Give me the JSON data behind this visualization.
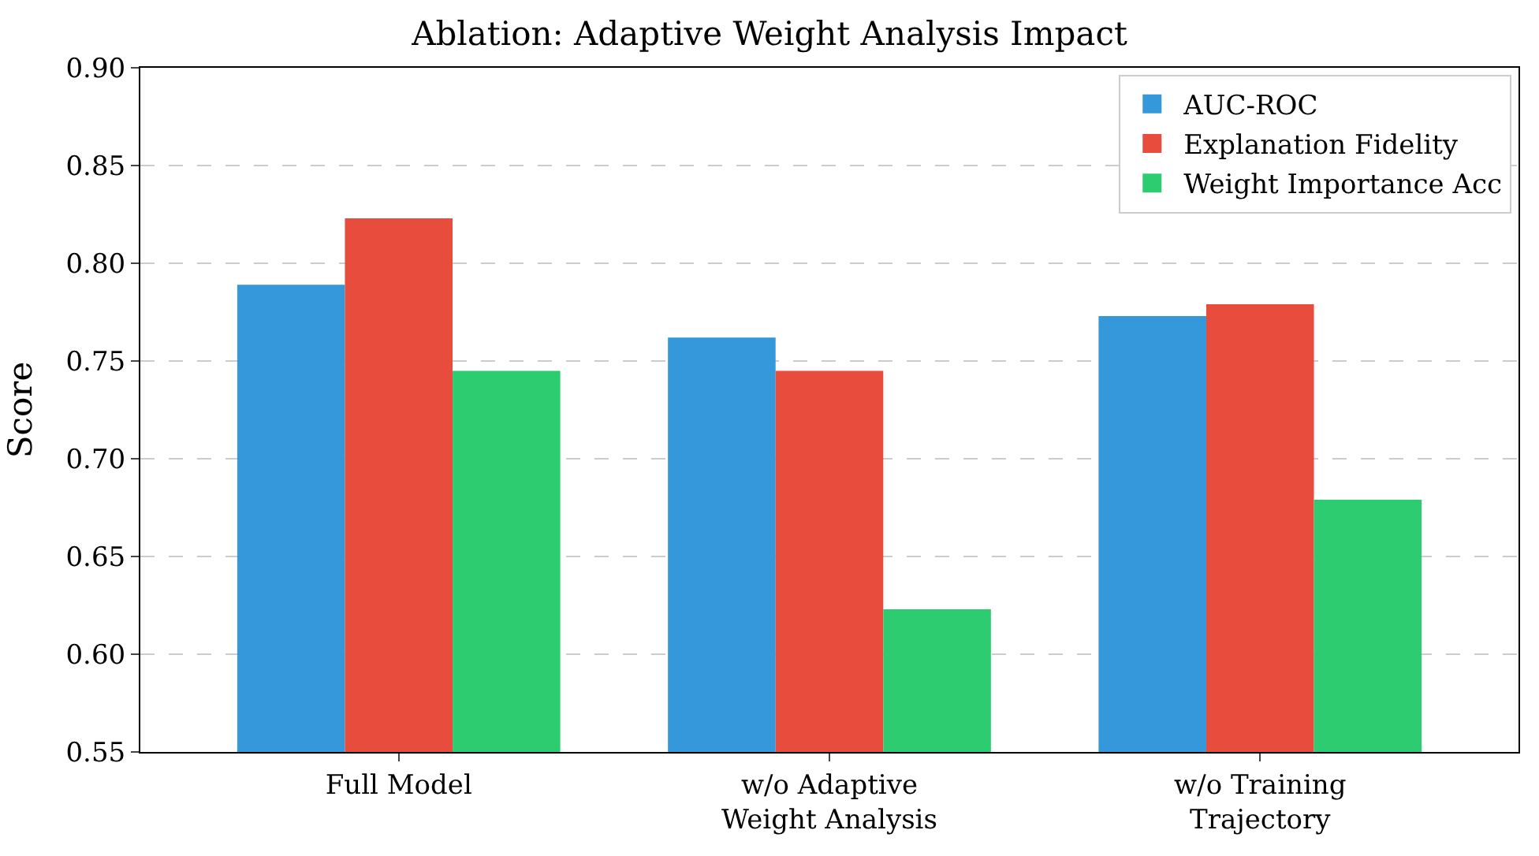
{
  "chart_data": {
    "type": "bar",
    "title": "Ablation: Adaptive Weight Analysis Impact",
    "ylabel": "Score",
    "categories": [
      "Full Model",
      "w/o Adaptive\nWeight Analysis",
      "w/o Training\nTrajectory"
    ],
    "series": [
      {
        "name": "AUC-ROC",
        "color": "#3498db",
        "values": [
          0.789,
          0.762,
          0.773
        ]
      },
      {
        "name": "Explanation Fidelity",
        "color": "#e74c3c",
        "values": [
          0.823,
          0.745,
          0.779
        ]
      },
      {
        "name": "Weight Importance Acc",
        "color": "#2ecc71",
        "values": [
          0.745,
          0.623,
          0.679
        ]
      }
    ],
    "ylim": [
      0.55,
      0.9
    ],
    "yticks": [
      0.55,
      {
        "value": 0.6,
        "label": "0.60"
      },
      0.65,
      {
        "value": 0.7,
        "label": "0.70"
      },
      0.75,
      {
        "value": 0.8,
        "label": "0.80"
      },
      0.85,
      {
        "value": 0.9,
        "label": "0.90"
      }
    ],
    "grid": "y",
    "legend": "top right"
  }
}
